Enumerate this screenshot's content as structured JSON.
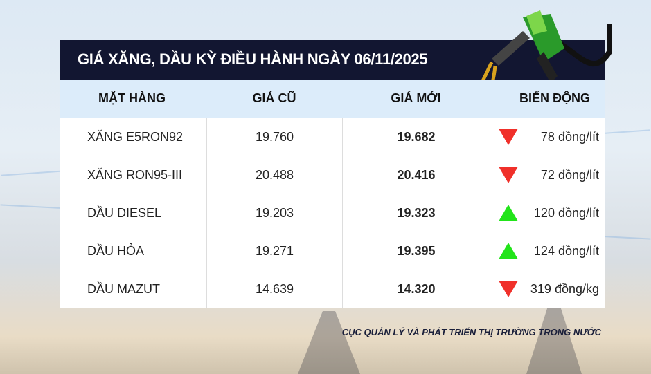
{
  "title": "GIÁ XĂNG, DẦU KỲ ĐIỀU HÀNH NGÀY 06/11/2025",
  "columns": [
    "MẶT HÀNG",
    "GIÁ CŨ",
    "GIÁ MỚI",
    "BIẾN ĐỘNG"
  ],
  "rows": [
    {
      "item": "XĂNG E5RON92",
      "old": "19.760",
      "new": "19.682",
      "change": "78 đồng/lít",
      "direction": "down"
    },
    {
      "item": "XĂNG RON95-III",
      "old": "20.488",
      "new": "20.416",
      "change": "72 đồng/lít",
      "direction": "down"
    },
    {
      "item": "DẦU DIESEL",
      "old": "19.203",
      "new": "19.323",
      "change": "120 đồng/lít",
      "direction": "up"
    },
    {
      "item": "DẦU HỎA",
      "old": "19.271",
      "new": "19.395",
      "change": "124 đồng/lít",
      "direction": "up"
    },
    {
      "item": "DẦU MAZUT",
      "old": "14.639",
      "new": "14.320",
      "change": "319 đồng/kg",
      "direction": "down"
    }
  ],
  "source": "CỤC QUẢN LÝ VÀ PHÁT TRIỂN THỊ TRƯỜNG TRONG NƯỚC",
  "colors": {
    "header": "#121631",
    "down": "#f0302a",
    "up": "#22e41a"
  }
}
